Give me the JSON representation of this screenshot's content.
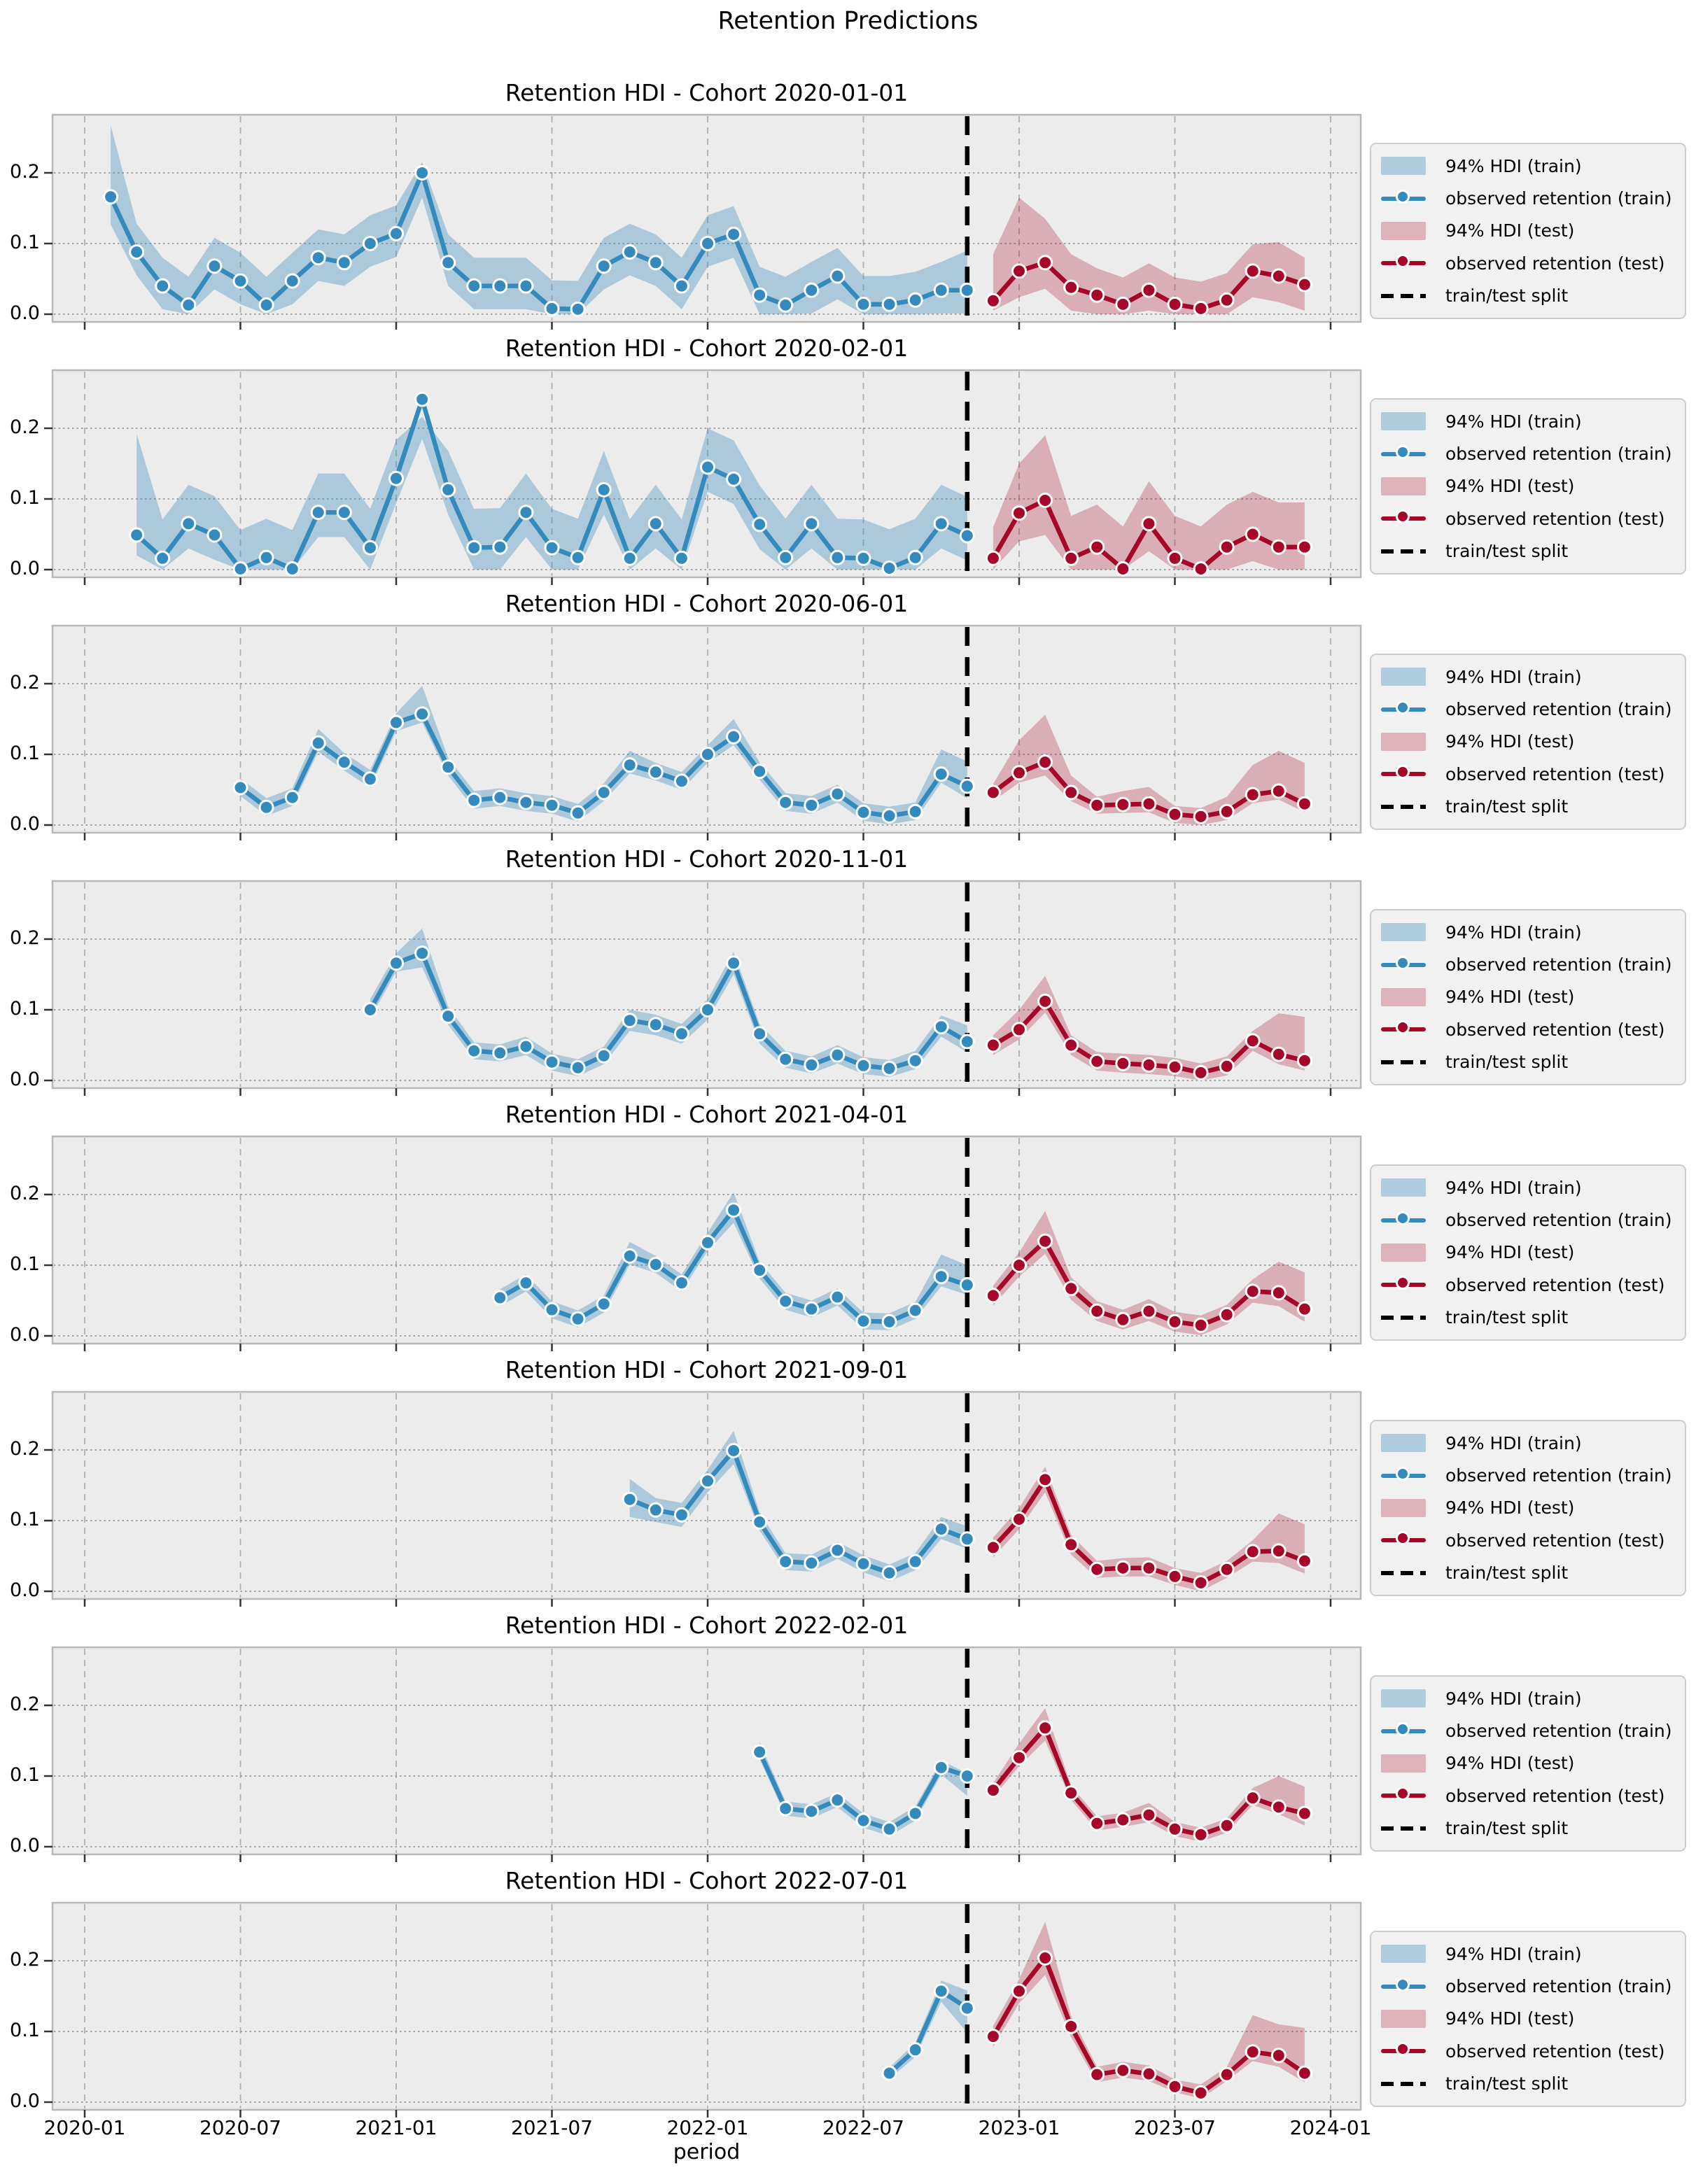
{
  "figure": {
    "suptitle": "Retention Predictions",
    "xlabel": "period",
    "x_tick_labels": [
      "2020-01",
      "2020-07",
      "2021-01",
      "2021-07",
      "2022-01",
      "2022-07",
      "2023-01",
      "2023-07",
      "2024-01"
    ],
    "y_tick_labels": [
      "0.0",
      "0.1",
      "0.2"
    ]
  },
  "legend": {
    "items": [
      {
        "label": "94% HDI (train)",
        "type": "patch",
        "color_key": "train_band"
      },
      {
        "label": "observed retention (train)",
        "type": "line-marker",
        "color_key": "train"
      },
      {
        "label": "94% HDI (test)",
        "type": "patch",
        "color_key": "test_band"
      },
      {
        "label": "observed retention (test)",
        "type": "line-marker",
        "color_key": "test"
      },
      {
        "label": "train/test split",
        "type": "dashed",
        "color_key": "split"
      }
    ]
  },
  "colors": {
    "train": "#348ABD",
    "train_band": "rgba(52,138,189,0.35)",
    "test": "#A60628",
    "test_band": "rgba(166,6,40,0.27)",
    "split": "#000000",
    "axes_bg": "#ececec",
    "grid_v": "#b0b0b0",
    "grid_h": "#9a9a9a",
    "spine": "#b8b8b8",
    "tick": "#333333"
  },
  "axis": {
    "x_start_month": "2020-01",
    "x_tick_months": [
      0,
      6,
      12,
      18,
      24,
      30,
      36,
      42,
      48
    ],
    "y_ticks": [
      0.0,
      0.1,
      0.2
    ],
    "ylim": [
      -0.011,
      0.282
    ],
    "split_month": 34,
    "grid": true,
    "legend_position": "right"
  },
  "chart_data": [
    {
      "type": "line",
      "title": "Retention HDI - Cohort 2020-01-01",
      "train": {
        "start_month": 1,
        "values": [
          0.166,
          0.088,
          0.04,
          0.013,
          0.068,
          0.047,
          0.013,
          0.047,
          0.08,
          0.073,
          0.1,
          0.114,
          0.2,
          0.073,
          0.04,
          0.04,
          0.04,
          0.008,
          0.007,
          0.068,
          0.088,
          0.073,
          0.04,
          0.1,
          0.113,
          0.027,
          0.013,
          0.034,
          0.054,
          0.014,
          0.014,
          0.02,
          0.034,
          0.034
        ],
        "hdi_lower": [
          0.127,
          0.055,
          0.007,
          0.0,
          0.035,
          0.014,
          0.0,
          0.014,
          0.047,
          0.04,
          0.067,
          0.081,
          0.165,
          0.04,
          0.007,
          0.007,
          0.007,
          0.0,
          0.0,
          0.035,
          0.055,
          0.04,
          0.007,
          0.067,
          0.08,
          0.0,
          0.0,
          0.001,
          0.021,
          0.0,
          0.0,
          0.0,
          0.001,
          0.001
        ],
        "hdi_upper": [
          0.267,
          0.128,
          0.08,
          0.053,
          0.108,
          0.087,
          0.053,
          0.087,
          0.12,
          0.113,
          0.14,
          0.154,
          0.215,
          0.113,
          0.08,
          0.08,
          0.08,
          0.048,
          0.047,
          0.108,
          0.128,
          0.113,
          0.08,
          0.14,
          0.153,
          0.067,
          0.053,
          0.074,
          0.094,
          0.054,
          0.054,
          0.06,
          0.074,
          0.09
        ]
      },
      "test": {
        "start_month": 35,
        "values": [
          0.019,
          0.061,
          0.073,
          0.038,
          0.027,
          0.014,
          0.034,
          0.014,
          0.008,
          0.02,
          0.061,
          0.054,
          0.042
        ],
        "hdi_lower": [
          0.005,
          0.024,
          0.036,
          0.005,
          0.0,
          0.0,
          0.005,
          0.0,
          0.0,
          0.0,
          0.024,
          0.017,
          0.005
        ],
        "hdi_upper": [
          0.085,
          0.165,
          0.135,
          0.085,
          0.065,
          0.052,
          0.072,
          0.052,
          0.046,
          0.058,
          0.099,
          0.102,
          0.08
        ]
      }
    },
    {
      "type": "line",
      "title": "Retention HDI - Cohort 2020-02-01",
      "train": {
        "start_month": 2,
        "values": [
          0.049,
          0.016,
          0.065,
          0.049,
          0.001,
          0.017,
          0.001,
          0.081,
          0.081,
          0.031,
          0.129,
          0.241,
          0.113,
          0.031,
          0.032,
          0.081,
          0.031,
          0.017,
          0.113,
          0.016,
          0.065,
          0.016,
          0.145,
          0.128,
          0.064,
          0.017,
          0.065,
          0.017,
          0.016,
          0.002,
          0.017,
          0.065,
          0.048
        ],
        "hdi_lower": [
          0.02,
          0.0,
          0.03,
          0.014,
          0.0,
          0.0,
          0.0,
          0.046,
          0.046,
          0.0,
          0.094,
          0.185,
          0.078,
          0.0,
          0.0,
          0.046,
          0.0,
          0.0,
          0.078,
          0.0,
          0.03,
          0.0,
          0.11,
          0.093,
          0.029,
          0.0,
          0.03,
          0.0,
          0.0,
          0.0,
          0.0,
          0.03,
          0.013
        ],
        "hdi_upper": [
          0.192,
          0.071,
          0.12,
          0.104,
          0.056,
          0.072,
          0.056,
          0.136,
          0.136,
          0.086,
          0.184,
          0.216,
          0.168,
          0.086,
          0.087,
          0.136,
          0.086,
          0.072,
          0.168,
          0.071,
          0.12,
          0.071,
          0.2,
          0.183,
          0.119,
          0.072,
          0.12,
          0.072,
          0.071,
          0.057,
          0.072,
          0.12,
          0.103
        ]
      },
      "test": {
        "start_month": 35,
        "values": [
          0.016,
          0.08,
          0.098,
          0.016,
          0.032,
          0.001,
          0.065,
          0.016,
          0.001,
          0.032,
          0.05,
          0.032,
          0.032
        ],
        "hdi_lower": [
          0.0,
          0.04,
          0.049,
          0.0,
          0.0,
          0.0,
          0.026,
          0.0,
          0.0,
          0.0,
          0.012,
          0.0,
          0.0
        ],
        "hdi_upper": [
          0.06,
          0.15,
          0.19,
          0.076,
          0.092,
          0.061,
          0.125,
          0.076,
          0.061,
          0.092,
          0.11,
          0.095,
          0.095
        ]
      }
    },
    {
      "type": "line",
      "title": "Retention HDI - Cohort 2020-06-01",
      "train": {
        "start_month": 6,
        "values": [
          0.053,
          0.025,
          0.039,
          0.116,
          0.089,
          0.065,
          0.145,
          0.157,
          0.082,
          0.035,
          0.039,
          0.032,
          0.028,
          0.017,
          0.046,
          0.085,
          0.075,
          0.062,
          0.1,
          0.125,
          0.076,
          0.032,
          0.028,
          0.044,
          0.018,
          0.013,
          0.019,
          0.072,
          0.055
        ],
        "hdi_lower": [
          0.041,
          0.013,
          0.027,
          0.104,
          0.077,
          0.053,
          0.133,
          0.145,
          0.07,
          0.023,
          0.027,
          0.02,
          0.016,
          0.005,
          0.034,
          0.073,
          0.063,
          0.05,
          0.088,
          0.113,
          0.064,
          0.02,
          0.016,
          0.032,
          0.006,
          0.001,
          0.007,
          0.06,
          0.038
        ],
        "hdi_upper": [
          0.066,
          0.038,
          0.052,
          0.136,
          0.102,
          0.078,
          0.158,
          0.197,
          0.095,
          0.048,
          0.052,
          0.045,
          0.041,
          0.03,
          0.059,
          0.105,
          0.088,
          0.075,
          0.113,
          0.15,
          0.089,
          0.045,
          0.041,
          0.057,
          0.031,
          0.026,
          0.032,
          0.107,
          0.09
        ]
      },
      "test": {
        "start_month": 35,
        "values": [
          0.046,
          0.074,
          0.089,
          0.046,
          0.028,
          0.029,
          0.03,
          0.015,
          0.012,
          0.019,
          0.043,
          0.048,
          0.03
        ],
        "hdi_lower": [
          0.034,
          0.06,
          0.07,
          0.034,
          0.016,
          0.017,
          0.018,
          0.003,
          0.0,
          0.007,
          0.031,
          0.036,
          0.018
        ],
        "hdi_upper": [
          0.058,
          0.12,
          0.156,
          0.07,
          0.04,
          0.048,
          0.054,
          0.027,
          0.024,
          0.04,
          0.085,
          0.105,
          0.088
        ]
      }
    },
    {
      "type": "line",
      "title": "Retention HDI - Cohort 2020-11-01",
      "train": {
        "start_month": 11,
        "values": [
          0.1,
          0.166,
          0.18,
          0.091,
          0.042,
          0.039,
          0.048,
          0.026,
          0.018,
          0.035,
          0.085,
          0.079,
          0.066,
          0.1,
          0.166,
          0.066,
          0.03,
          0.022,
          0.036,
          0.021,
          0.017,
          0.028,
          0.076,
          0.055
        ],
        "hdi_lower": [
          0.088,
          0.154,
          0.16,
          0.079,
          0.03,
          0.027,
          0.036,
          0.014,
          0.006,
          0.023,
          0.07,
          0.064,
          0.052,
          0.086,
          0.15,
          0.052,
          0.018,
          0.01,
          0.024,
          0.009,
          0.005,
          0.016,
          0.062,
          0.04
        ],
        "hdi_upper": [
          0.115,
          0.18,
          0.215,
          0.105,
          0.054,
          0.051,
          0.062,
          0.038,
          0.03,
          0.048,
          0.1,
          0.093,
          0.08,
          0.115,
          0.182,
          0.08,
          0.042,
          0.034,
          0.05,
          0.033,
          0.029,
          0.042,
          0.092,
          0.078
        ]
      },
      "test": {
        "start_month": 35,
        "values": [
          0.05,
          0.072,
          0.112,
          0.05,
          0.027,
          0.024,
          0.022,
          0.019,
          0.011,
          0.02,
          0.056,
          0.037,
          0.028
        ],
        "hdi_lower": [
          0.036,
          0.058,
          0.096,
          0.036,
          0.014,
          0.011,
          0.009,
          0.006,
          0.0,
          0.007,
          0.042,
          0.023,
          0.014
        ],
        "hdi_upper": [
          0.064,
          0.1,
          0.148,
          0.064,
          0.04,
          0.038,
          0.036,
          0.032,
          0.024,
          0.034,
          0.07,
          0.095,
          0.09
        ]
      }
    },
    {
      "type": "line",
      "title": "Retention HDI - Cohort 2021-04-01",
      "train": {
        "start_month": 16,
        "values": [
          0.054,
          0.075,
          0.037,
          0.024,
          0.045,
          0.113,
          0.101,
          0.075,
          0.132,
          0.178,
          0.093,
          0.049,
          0.038,
          0.055,
          0.021,
          0.02,
          0.036,
          0.084,
          0.072
        ],
        "hdi_lower": [
          0.042,
          0.063,
          0.025,
          0.012,
          0.033,
          0.101,
          0.089,
          0.063,
          0.12,
          0.16,
          0.081,
          0.037,
          0.026,
          0.043,
          0.009,
          0.008,
          0.024,
          0.07,
          0.058
        ],
        "hdi_upper": [
          0.066,
          0.087,
          0.049,
          0.036,
          0.057,
          0.133,
          0.113,
          0.087,
          0.146,
          0.203,
          0.105,
          0.061,
          0.05,
          0.067,
          0.033,
          0.032,
          0.048,
          0.115,
          0.1
        ]
      },
      "test": {
        "start_month": 35,
        "values": [
          0.057,
          0.1,
          0.134,
          0.067,
          0.035,
          0.023,
          0.035,
          0.02,
          0.015,
          0.03,
          0.063,
          0.061,
          0.038
        ],
        "hdi_lower": [
          0.043,
          0.084,
          0.116,
          0.051,
          0.021,
          0.009,
          0.021,
          0.006,
          0.001,
          0.016,
          0.047,
          0.042,
          0.02
        ],
        "hdi_upper": [
          0.071,
          0.118,
          0.177,
          0.083,
          0.049,
          0.037,
          0.052,
          0.034,
          0.029,
          0.044,
          0.08,
          0.105,
          0.09
        ]
      }
    },
    {
      "type": "line",
      "title": "Retention HDI - Cohort 2021-09-01",
      "train": {
        "start_month": 21,
        "values": [
          0.13,
          0.115,
          0.108,
          0.156,
          0.199,
          0.098,
          0.042,
          0.04,
          0.058,
          0.039,
          0.026,
          0.042,
          0.088,
          0.074
        ],
        "hdi_lower": [
          0.105,
          0.098,
          0.091,
          0.14,
          0.18,
          0.086,
          0.03,
          0.028,
          0.046,
          0.027,
          0.014,
          0.03,
          0.074,
          0.06
        ],
        "hdi_upper": [
          0.159,
          0.132,
          0.125,
          0.172,
          0.227,
          0.112,
          0.054,
          0.052,
          0.07,
          0.051,
          0.038,
          0.054,
          0.105,
          0.092
        ]
      },
      "test": {
        "start_month": 35,
        "values": [
          0.062,
          0.102,
          0.158,
          0.066,
          0.031,
          0.033,
          0.033,
          0.021,
          0.012,
          0.031,
          0.056,
          0.057,
          0.043
        ],
        "hdi_lower": [
          0.048,
          0.088,
          0.14,
          0.052,
          0.019,
          0.021,
          0.021,
          0.009,
          0.0,
          0.019,
          0.042,
          0.04,
          0.025
        ],
        "hdi_upper": [
          0.076,
          0.118,
          0.176,
          0.08,
          0.043,
          0.047,
          0.048,
          0.033,
          0.026,
          0.043,
          0.072,
          0.11,
          0.095
        ]
      }
    },
    {
      "type": "line",
      "title": "Retention HDI - Cohort 2022-02-01",
      "train": {
        "start_month": 26,
        "values": [
          0.134,
          0.054,
          0.05,
          0.066,
          0.037,
          0.025,
          0.047,
          0.112,
          0.1
        ],
        "hdi_lower": [
          0.124,
          0.044,
          0.04,
          0.056,
          0.027,
          0.015,
          0.037,
          0.102,
          0.072
        ],
        "hdi_upper": [
          0.148,
          0.064,
          0.06,
          0.076,
          0.047,
          0.035,
          0.057,
          0.122,
          0.104
        ]
      },
      "test": {
        "start_month": 35,
        "values": [
          0.08,
          0.126,
          0.168,
          0.076,
          0.033,
          0.038,
          0.045,
          0.025,
          0.017,
          0.03,
          0.069,
          0.056,
          0.047
        ],
        "hdi_lower": [
          0.07,
          0.114,
          0.15,
          0.066,
          0.023,
          0.028,
          0.035,
          0.015,
          0.007,
          0.02,
          0.059,
          0.046,
          0.03
        ],
        "hdi_upper": [
          0.09,
          0.146,
          0.196,
          0.086,
          0.043,
          0.048,
          0.062,
          0.035,
          0.027,
          0.04,
          0.083,
          0.1,
          0.085
        ]
      }
    },
    {
      "type": "line",
      "title": "Retention HDI - Cohort 2022-07-01",
      "train": {
        "start_month": 31,
        "values": [
          0.041,
          0.074,
          0.157,
          0.133
        ],
        "hdi_lower": [
          0.033,
          0.064,
          0.142,
          0.098
        ],
        "hdi_upper": [
          0.049,
          0.084,
          0.172,
          0.158
        ]
      },
      "test": {
        "start_month": 35,
        "values": [
          0.093,
          0.157,
          0.204,
          0.107,
          0.039,
          0.045,
          0.04,
          0.022,
          0.013,
          0.039,
          0.071,
          0.066,
          0.041
        ],
        "hdi_lower": [
          0.078,
          0.14,
          0.18,
          0.092,
          0.028,
          0.035,
          0.03,
          0.014,
          0.005,
          0.03,
          0.058,
          0.05,
          0.028
        ],
        "hdi_upper": [
          0.108,
          0.174,
          0.255,
          0.122,
          0.05,
          0.057,
          0.052,
          0.032,
          0.025,
          0.05,
          0.123,
          0.11,
          0.105
        ]
      }
    }
  ]
}
